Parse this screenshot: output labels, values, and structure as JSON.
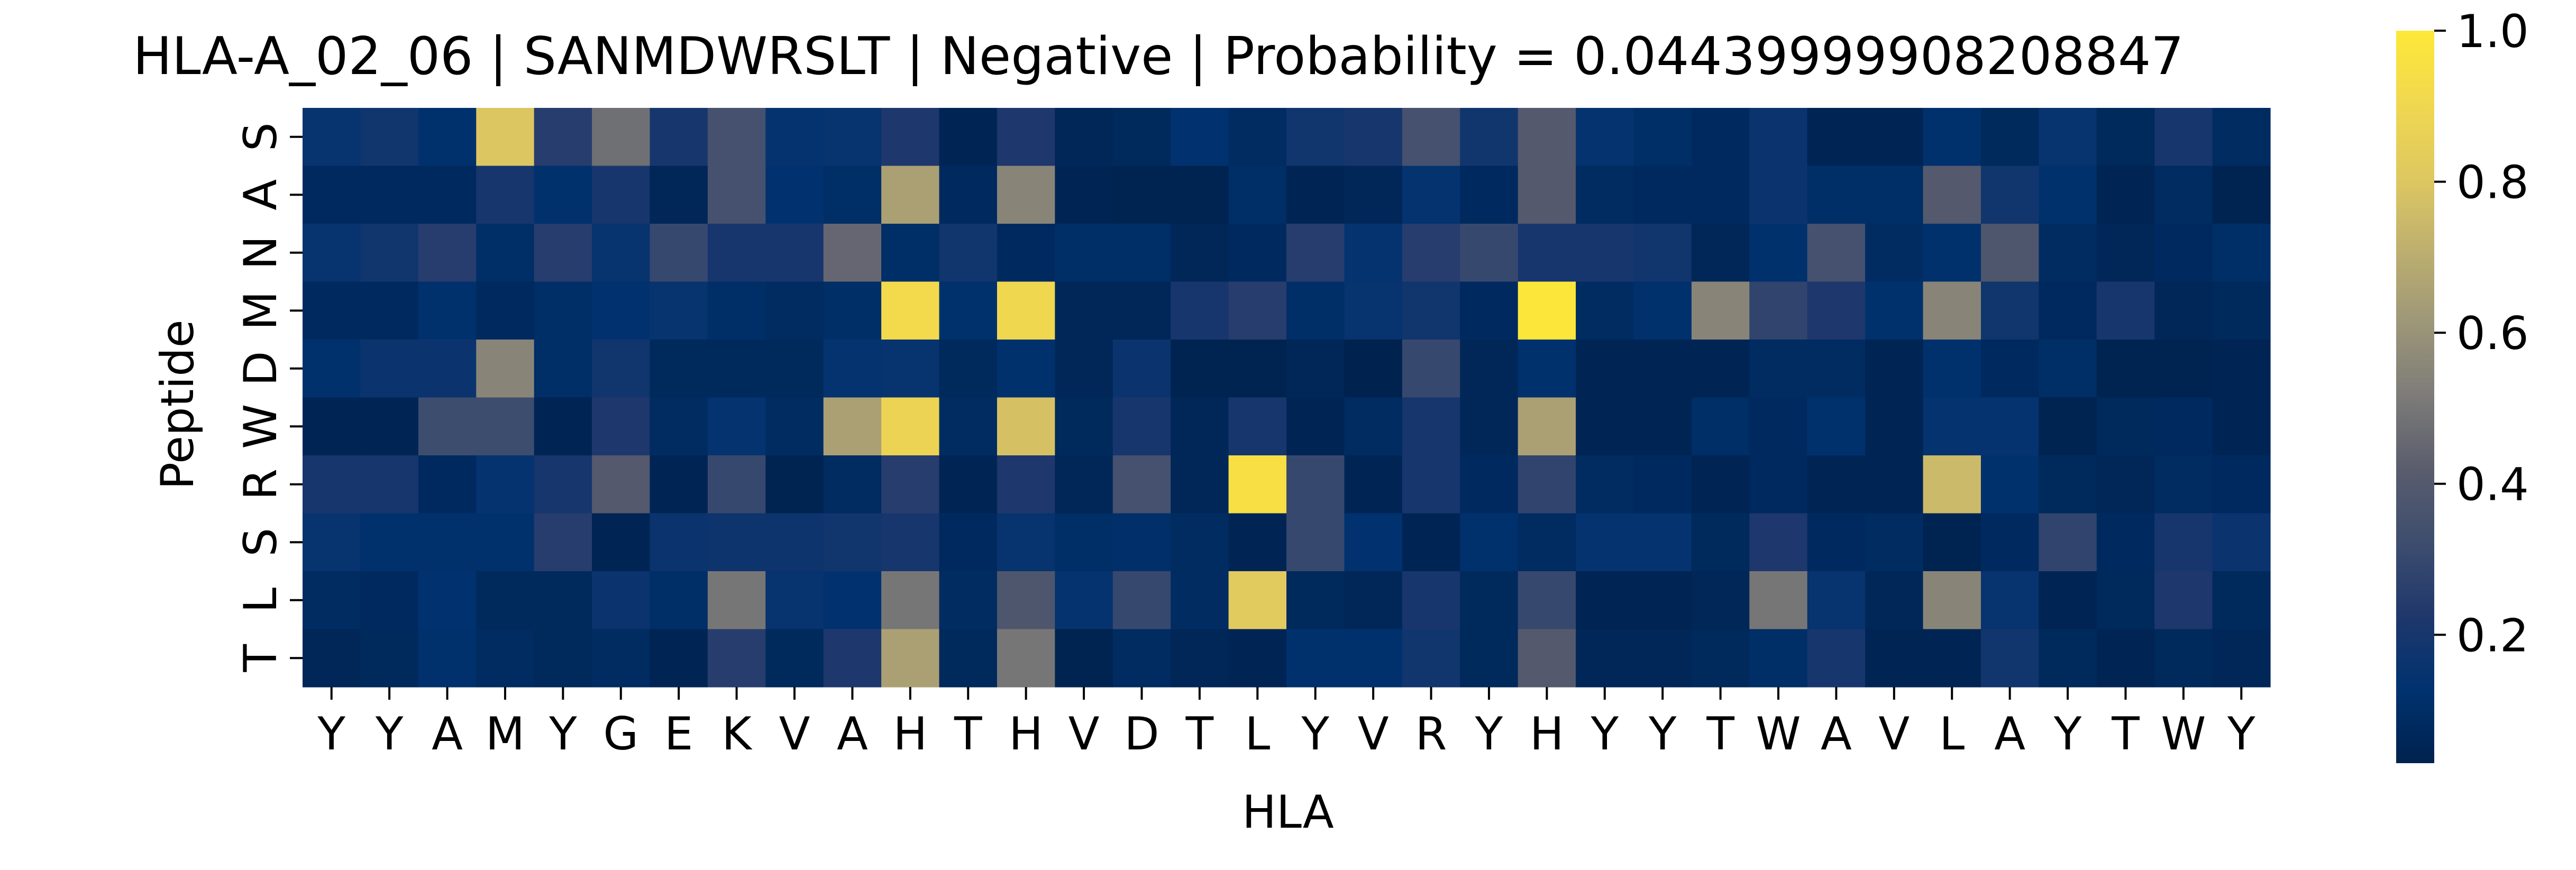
{
  "chart_data": {
    "type": "heatmap",
    "title": "HLA-A_02_06 | SANMDWRSLT | Negative | Probability = 0.04439999908208847",
    "xlabel": "HLA",
    "ylabel": "Peptide",
    "x_labels": [
      "Y",
      "Y",
      "A",
      "M",
      "Y",
      "G",
      "E",
      "K",
      "V",
      "A",
      "H",
      "T",
      "H",
      "V",
      "D",
      "T",
      "L",
      "Y",
      "V",
      "R",
      "Y",
      "H",
      "Y",
      "Y",
      "T",
      "W",
      "A",
      "V",
      "L",
      "A",
      "Y",
      "T",
      "W",
      "Y"
    ],
    "y_labels": [
      "S",
      "A",
      "N",
      "M",
      "D",
      "W",
      "R",
      "S",
      "L",
      "T"
    ],
    "colormap": "cividis",
    "vmin": 0.03,
    "vmax": 1.0,
    "colorbar_ticks": [
      "0.2",
      "0.4",
      "0.6",
      "0.8",
      "1.0"
    ],
    "colorbar_tick_values": [
      0.2,
      0.4,
      0.6,
      0.8,
      1.0
    ],
    "values": [
      [
        0.15,
        0.18,
        0.12,
        0.8,
        0.25,
        0.48,
        0.2,
        0.35,
        0.14,
        0.15,
        0.22,
        0.05,
        0.22,
        0.06,
        0.07,
        0.13,
        0.09,
        0.18,
        0.2,
        0.35,
        0.18,
        0.4,
        0.14,
        0.1,
        0.08,
        0.16,
        0.05,
        0.05,
        0.12,
        0.07,
        0.15,
        0.07,
        0.2,
        0.09
      ],
      [
        0.08,
        0.08,
        0.08,
        0.2,
        0.12,
        0.2,
        0.06,
        0.35,
        0.13,
        0.1,
        0.65,
        0.08,
        0.55,
        0.05,
        0.04,
        0.04,
        0.1,
        0.05,
        0.06,
        0.14,
        0.08,
        0.4,
        0.09,
        0.08,
        0.08,
        0.16,
        0.1,
        0.1,
        0.4,
        0.18,
        0.12,
        0.05,
        0.09,
        0.04
      ],
      [
        0.15,
        0.18,
        0.25,
        0.1,
        0.25,
        0.15,
        0.3,
        0.2,
        0.2,
        0.45,
        0.1,
        0.18,
        0.08,
        0.1,
        0.1,
        0.06,
        0.08,
        0.25,
        0.14,
        0.25,
        0.3,
        0.2,
        0.2,
        0.18,
        0.06,
        0.12,
        0.35,
        0.09,
        0.12,
        0.38,
        0.09,
        0.06,
        0.08,
        0.1
      ],
      [
        0.08,
        0.08,
        0.12,
        0.08,
        0.1,
        0.13,
        0.15,
        0.1,
        0.09,
        0.1,
        0.92,
        0.12,
        0.9,
        0.06,
        0.06,
        0.2,
        0.25,
        0.1,
        0.15,
        0.18,
        0.08,
        0.99,
        0.09,
        0.12,
        0.55,
        0.28,
        0.22,
        0.12,
        0.55,
        0.18,
        0.08,
        0.2,
        0.06,
        0.07
      ],
      [
        0.12,
        0.16,
        0.16,
        0.55,
        0.1,
        0.18,
        0.07,
        0.07,
        0.07,
        0.14,
        0.15,
        0.07,
        0.12,
        0.06,
        0.16,
        0.04,
        0.04,
        0.06,
        0.03,
        0.3,
        0.06,
        0.12,
        0.05,
        0.05,
        0.05,
        0.09,
        0.09,
        0.05,
        0.12,
        0.08,
        0.1,
        0.04,
        0.04,
        0.05
      ],
      [
        0.05,
        0.05,
        0.32,
        0.32,
        0.05,
        0.22,
        0.09,
        0.14,
        0.09,
        0.65,
        0.88,
        0.09,
        0.78,
        0.07,
        0.2,
        0.06,
        0.2,
        0.05,
        0.09,
        0.2,
        0.06,
        0.65,
        0.05,
        0.05,
        0.1,
        0.08,
        0.12,
        0.05,
        0.14,
        0.14,
        0.04,
        0.07,
        0.08,
        0.05
      ],
      [
        0.2,
        0.2,
        0.08,
        0.14,
        0.2,
        0.4,
        0.05,
        0.3,
        0.04,
        0.09,
        0.25,
        0.05,
        0.22,
        0.06,
        0.35,
        0.06,
        0.95,
        0.3,
        0.05,
        0.2,
        0.08,
        0.28,
        0.09,
        0.08,
        0.05,
        0.08,
        0.05,
        0.05,
        0.75,
        0.12,
        0.07,
        0.06,
        0.09,
        0.08
      ],
      [
        0.15,
        0.12,
        0.12,
        0.12,
        0.25,
        0.05,
        0.16,
        0.17,
        0.17,
        0.18,
        0.2,
        0.08,
        0.15,
        0.1,
        0.11,
        0.09,
        0.05,
        0.3,
        0.13,
        0.05,
        0.12,
        0.09,
        0.14,
        0.14,
        0.07,
        0.22,
        0.08,
        0.09,
        0.04,
        0.08,
        0.28,
        0.08,
        0.2,
        0.16
      ],
      [
        0.09,
        0.08,
        0.13,
        0.07,
        0.07,
        0.16,
        0.1,
        0.5,
        0.15,
        0.13,
        0.5,
        0.09,
        0.38,
        0.14,
        0.3,
        0.09,
        0.82,
        0.07,
        0.06,
        0.2,
        0.07,
        0.3,
        0.05,
        0.05,
        0.06,
        0.5,
        0.15,
        0.06,
        0.55,
        0.15,
        0.05,
        0.07,
        0.22,
        0.07
      ],
      [
        0.06,
        0.07,
        0.12,
        0.09,
        0.07,
        0.09,
        0.05,
        0.25,
        0.07,
        0.22,
        0.65,
        0.07,
        0.5,
        0.04,
        0.09,
        0.06,
        0.05,
        0.12,
        0.12,
        0.18,
        0.07,
        0.4,
        0.06,
        0.06,
        0.07,
        0.1,
        0.2,
        0.05,
        0.05,
        0.18,
        0.07,
        0.05,
        0.07,
        0.06
      ]
    ]
  }
}
